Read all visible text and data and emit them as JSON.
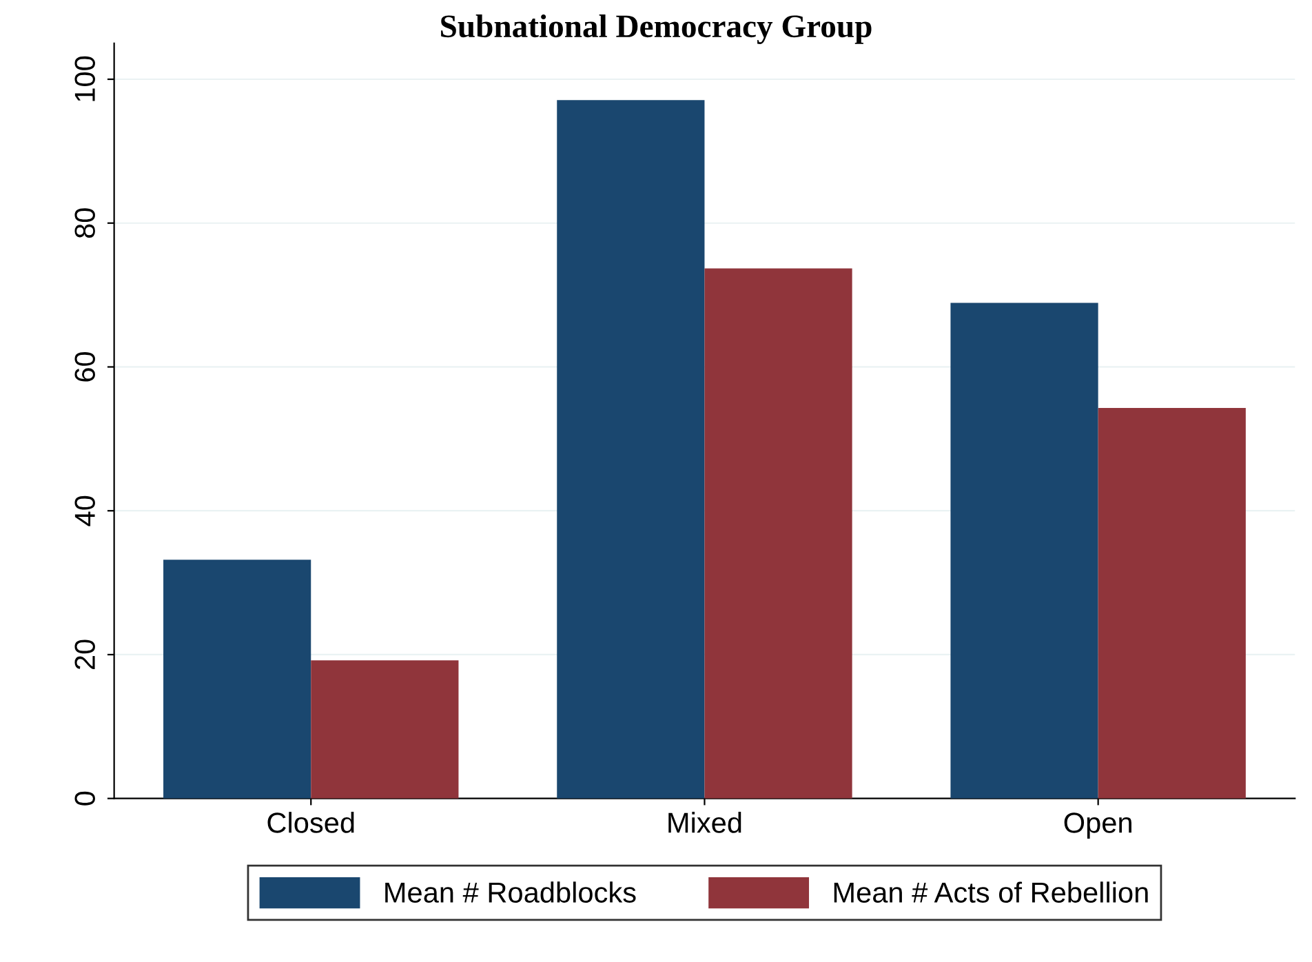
{
  "chart_data": {
    "type": "bar",
    "title": "Subnational Democracy Group",
    "categories": [
      "Closed",
      "Mixed",
      "Open"
    ],
    "series": [
      {
        "name": "Mean # Roadblocks",
        "color": "#1a476f",
        "values": [
          33.2,
          97.1,
          68.9
        ]
      },
      {
        "name": "Mean # Acts of Rebellion",
        "color": "#90353b",
        "values": [
          19.2,
          73.7,
          54.3
        ]
      }
    ],
    "ylim": [
      0,
      105
    ],
    "yticks": [
      0,
      20,
      40,
      60,
      80,
      100
    ],
    "grid": "y",
    "legend": "bottom"
  }
}
